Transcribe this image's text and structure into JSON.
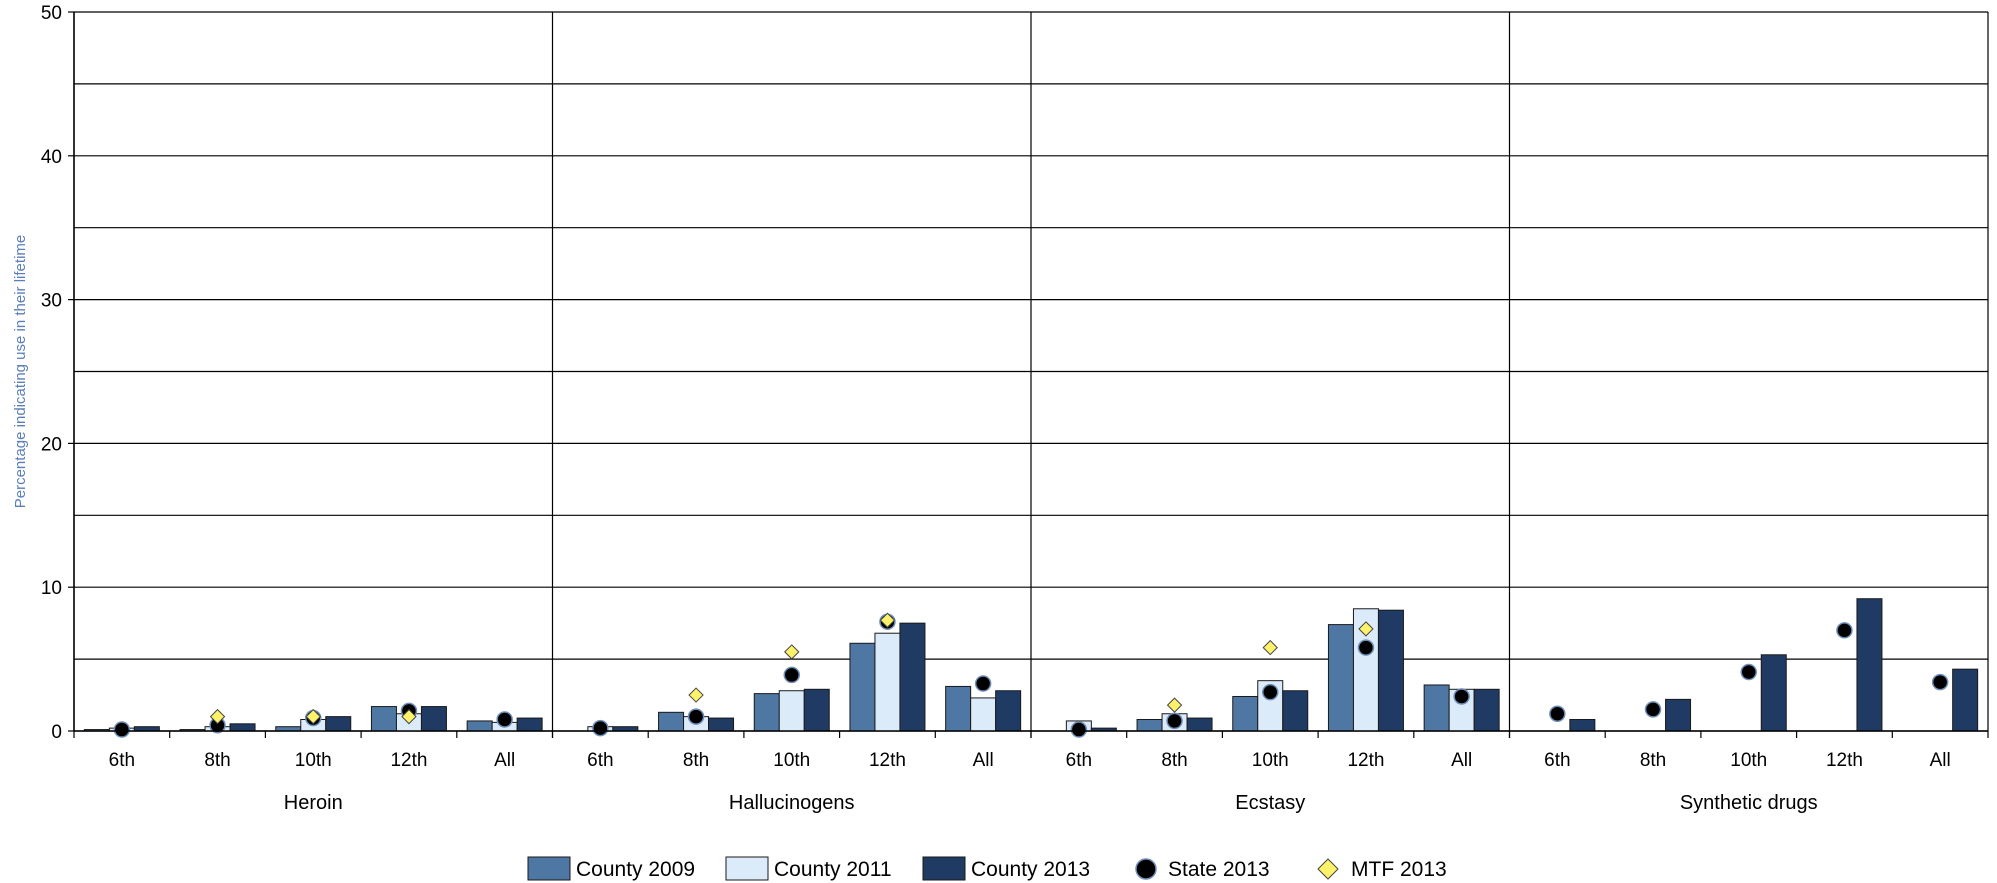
{
  "chart_data": {
    "type": "bar",
    "title": "",
    "xlabel": "",
    "ylabel": "Percentage indicating use in their lifetime",
    "ylim": [
      0,
      50
    ],
    "yticks": [
      0,
      10,
      20,
      30,
      40,
      50
    ],
    "grid": true,
    "legend_position": "bottom",
    "groups": [
      "Heroin",
      "Hallucinogens",
      "Ecstasy",
      "Synthetic drugs"
    ],
    "grades": [
      "6th",
      "8th",
      "10th",
      "12th",
      "All"
    ],
    "series": [
      {
        "name": "County 2009",
        "kind": "bar",
        "color": "#4f77a4",
        "values": [
          [
            0.1,
            0.1,
            0.3,
            1.7,
            0.7
          ],
          [
            0.0,
            1.3,
            2.6,
            6.1,
            3.1
          ],
          [
            0.0,
            0.8,
            2.4,
            7.4,
            3.2
          ],
          [
            null,
            null,
            null,
            null,
            null
          ]
        ]
      },
      {
        "name": "County 2011",
        "kind": "bar",
        "color": "#dcebfa",
        "values": [
          [
            0.2,
            0.3,
            0.8,
            1.2,
            0.6
          ],
          [
            0.3,
            1.0,
            2.8,
            6.8,
            2.3
          ],
          [
            0.7,
            1.2,
            3.5,
            8.5,
            2.9
          ],
          [
            null,
            null,
            null,
            null,
            null
          ]
        ]
      },
      {
        "name": "County 2013",
        "kind": "bar",
        "color": "#1f3b63",
        "values": [
          [
            0.3,
            0.5,
            1.0,
            1.7,
            0.9
          ],
          [
            0.3,
            0.9,
            2.9,
            7.5,
            2.8
          ],
          [
            0.2,
            0.9,
            2.8,
            8.4,
            2.9
          ],
          [
            0.8,
            2.2,
            5.3,
            9.2,
            4.3
          ]
        ]
      },
      {
        "name": "State 2013",
        "kind": "circle",
        "color": "#000000",
        "values": [
          [
            0.1,
            0.4,
            0.9,
            1.4,
            0.8
          ],
          [
            0.2,
            1.0,
            3.9,
            7.6,
            3.3
          ],
          [
            0.1,
            0.7,
            2.7,
            5.8,
            2.4
          ],
          [
            1.2,
            1.5,
            4.1,
            7.0,
            3.4
          ]
        ]
      },
      {
        "name": "MTF 2013",
        "kind": "diamond",
        "color": "#fdf26a",
        "values": [
          [
            null,
            1.0,
            1.0,
            1.0,
            null
          ],
          [
            null,
            2.5,
            5.5,
            7.7,
            null
          ],
          [
            null,
            1.8,
            5.8,
            7.1,
            null
          ],
          [
            null,
            null,
            null,
            null,
            null
          ]
        ]
      }
    ]
  }
}
